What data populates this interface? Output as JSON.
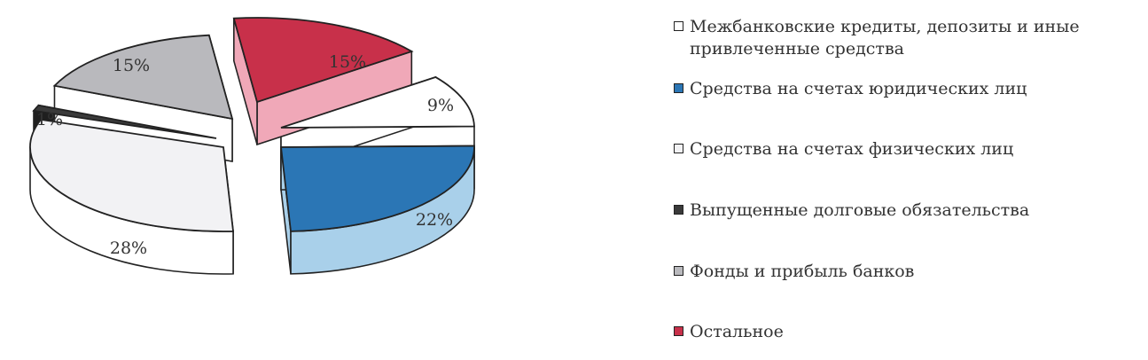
{
  "chart_data": {
    "type": "pie",
    "title": "",
    "slices": [
      {
        "label": "Межбанковские кредиты, депозиты и иные привлеченные средства",
        "value": 9,
        "label_text": "9%",
        "color": "#ffffff"
      },
      {
        "label": "Средства на счетах юридических лиц",
        "value": 22,
        "label_text": "22%",
        "color": "#2b76b5"
      },
      {
        "label": "Средства на счетах физических лиц",
        "value": 28,
        "label_text": "28%",
        "color": "#f2f2f4"
      },
      {
        "label": "Выпущенные долговые обязательства",
        "value": 1,
        "label_text": "1%",
        "color": "#3a3a3a"
      },
      {
        "label": "Фонды и прибыль банков",
        "value": 15,
        "label_text": "15%",
        "color": "#b9b9bd"
      },
      {
        "label": "Остальное",
        "value": 15,
        "label_text": "15%",
        "color": "#c8304a"
      }
    ],
    "legend_position": "right"
  },
  "legend": {
    "items": [
      {
        "text": "Межбанковские кредиты, депозиты и иные привлеченные средства",
        "color": "#ffffff"
      },
      {
        "text": "Средства на счетах юридических лиц",
        "color": "#2b76b5"
      },
      {
        "text": "Средства на счетах физических лиц",
        "color": "#f2f2f4"
      },
      {
        "text": "Выпущенные долговые обязательства",
        "color": "#3a3a3a"
      },
      {
        "text": "Фонды и прибыль банков",
        "color": "#b9b9bd"
      },
      {
        "text": "Остальное",
        "color": "#c8304a"
      }
    ]
  }
}
